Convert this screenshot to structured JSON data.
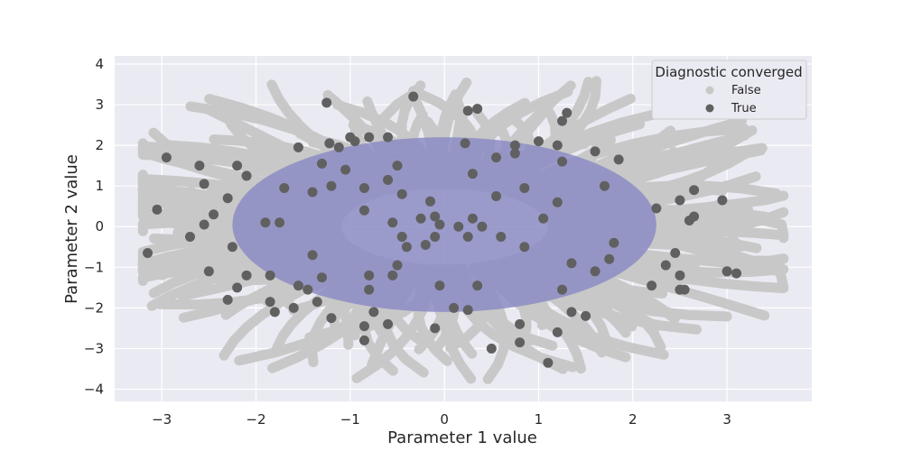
{
  "chart_data": {
    "type": "scatter",
    "xlabel": "Parameter 1 value",
    "ylabel": "Parameter 2 value",
    "xlim": [
      -3.5,
      3.9
    ],
    "ylim": [
      -4.3,
      4.2
    ],
    "xticks": [
      -3,
      -2,
      -1,
      0,
      1,
      2,
      3
    ],
    "yticks": [
      -4,
      -3,
      -2,
      -1,
      0,
      1,
      2,
      3,
      4
    ],
    "grid": true,
    "legend": {
      "title": "Diagnostic converged",
      "placement": "top-right",
      "entries": [
        {
          "label": "False",
          "color": "#c8c8c8"
        },
        {
          "label": "True",
          "color": "#606060"
        }
      ]
    },
    "region": {
      "shape": "ellipse",
      "center": [
        0.0,
        0.05
      ],
      "radius_x": 2.25,
      "radius_y": 2.15,
      "color": "#8c8cc4"
    },
    "colors": {
      "background": "#eaeaf2",
      "grid": "#ffffff",
      "false_points": "#c8c8c8",
      "true_points": "#606060"
    },
    "series": [
      {
        "name": "True",
        "points": [
          [
            -1.25,
            3.05
          ],
          [
            -0.33,
            3.2
          ],
          [
            0.25,
            2.85
          ],
          [
            0.35,
            2.9
          ],
          [
            1.3,
            2.8
          ],
          [
            1.25,
            2.6
          ],
          [
            -0.8,
            2.2
          ],
          [
            -0.95,
            2.1
          ],
          [
            0.22,
            2.05
          ],
          [
            0.75,
            2.0
          ],
          [
            1.0,
            2.1
          ],
          [
            1.2,
            2.0
          ],
          [
            -1.55,
            1.95
          ],
          [
            -1.22,
            2.05
          ],
          [
            -1.12,
            1.95
          ],
          [
            -0.5,
            1.5
          ],
          [
            0.3,
            1.3
          ],
          [
            0.55,
            1.7
          ],
          [
            0.75,
            1.8
          ],
          [
            1.25,
            1.6
          ],
          [
            1.6,
            1.85
          ],
          [
            -2.95,
            1.7
          ],
          [
            -2.6,
            1.5
          ],
          [
            -2.1,
            1.25
          ],
          [
            -1.3,
            1.55
          ],
          [
            -1.05,
            1.4
          ],
          [
            -0.6,
            1.15
          ],
          [
            -1.2,
            1.0
          ],
          [
            -2.55,
            1.05
          ],
          [
            -1.7,
            0.95
          ],
          [
            -0.85,
            0.95
          ],
          [
            0.85,
            0.95
          ],
          [
            1.7,
            1.0
          ],
          [
            -2.3,
            0.7
          ],
          [
            -1.4,
            0.85
          ],
          [
            -0.45,
            0.8
          ],
          [
            0.55,
            0.75
          ],
          [
            1.2,
            0.6
          ],
          [
            2.5,
            0.65
          ],
          [
            2.65,
            0.9
          ],
          [
            -3.05,
            0.42
          ],
          [
            -2.45,
            0.3
          ],
          [
            -0.85,
            0.4
          ],
          [
            -0.15,
            0.62
          ],
          [
            1.05,
            0.2
          ],
          [
            2.25,
            0.45
          ],
          [
            -2.55,
            0.05
          ],
          [
            -1.9,
            0.1
          ],
          [
            -1.75,
            0.1
          ],
          [
            -0.25,
            0.2
          ],
          [
            -0.1,
            0.25
          ],
          [
            0.3,
            0.2
          ],
          [
            -0.05,
            0.05
          ],
          [
            0.15,
            0.0
          ],
          [
            -0.55,
            0.1
          ],
          [
            0.4,
            0.0
          ],
          [
            2.6,
            0.15
          ],
          [
            -2.7,
            -0.25
          ],
          [
            -0.45,
            -0.25
          ],
          [
            -0.1,
            -0.25
          ],
          [
            0.25,
            -0.25
          ],
          [
            0.6,
            -0.25
          ],
          [
            1.8,
            -0.4
          ],
          [
            -3.15,
            -0.65
          ],
          [
            -2.25,
            -0.5
          ],
          [
            -1.4,
            -0.7
          ],
          [
            -0.4,
            -0.5
          ],
          [
            -0.2,
            -0.45
          ],
          [
            0.85,
            -0.5
          ],
          [
            1.75,
            -0.8
          ],
          [
            2.45,
            -0.65
          ],
          [
            2.35,
            -0.95
          ],
          [
            -2.5,
            -1.1
          ],
          [
            -2.1,
            -1.2
          ],
          [
            -1.85,
            -1.2
          ],
          [
            -0.5,
            -0.95
          ],
          [
            -1.3,
            -1.25
          ],
          [
            -1.55,
            -1.45
          ],
          [
            -0.8,
            -1.2
          ],
          [
            -0.55,
            -1.2
          ],
          [
            1.35,
            -0.9
          ],
          [
            1.6,
            -1.1
          ],
          [
            2.5,
            -1.2
          ],
          [
            3.0,
            -1.1
          ],
          [
            3.1,
            -1.15
          ],
          [
            2.2,
            -1.45
          ],
          [
            2.55,
            -1.55
          ],
          [
            -2.2,
            -1.5
          ],
          [
            -1.45,
            -1.55
          ],
          [
            -1.35,
            -1.85
          ],
          [
            -0.8,
            -1.55
          ],
          [
            -0.05,
            -1.45
          ],
          [
            0.35,
            -1.45
          ],
          [
            1.25,
            -1.55
          ],
          [
            -2.3,
            -1.8
          ],
          [
            -1.85,
            -1.85
          ],
          [
            -1.6,
            -2.0
          ],
          [
            -1.8,
            -2.1
          ],
          [
            -0.75,
            -2.1
          ],
          [
            0.1,
            -2.0
          ],
          [
            0.25,
            -2.05
          ],
          [
            1.35,
            -2.1
          ],
          [
            1.5,
            -2.2
          ],
          [
            -1.2,
            -2.25
          ],
          [
            -0.85,
            -2.45
          ],
          [
            -0.6,
            -2.4
          ],
          [
            -0.1,
            -2.5
          ],
          [
            0.8,
            -2.4
          ],
          [
            1.2,
            -2.6
          ],
          [
            -0.85,
            -2.8
          ],
          [
            0.5,
            -3.0
          ],
          [
            0.8,
            -2.85
          ],
          [
            1.1,
            -3.35
          ],
          [
            2.5,
            -1.55
          ],
          [
            2.65,
            0.25
          ],
          [
            2.95,
            0.65
          ],
          [
            -2.2,
            1.5
          ],
          [
            -0.6,
            2.2
          ],
          [
            1.85,
            1.65
          ],
          [
            -1.0,
            2.2
          ]
        ]
      }
    ]
  }
}
